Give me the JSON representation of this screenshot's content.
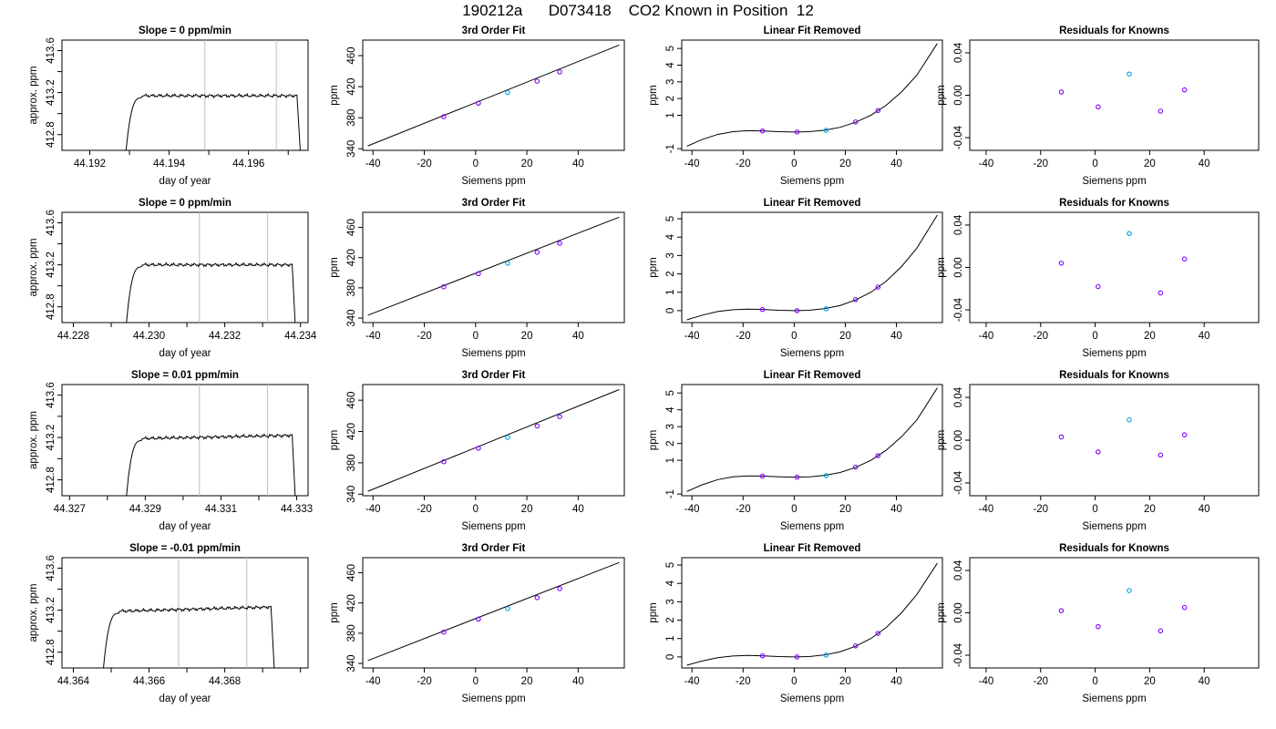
{
  "page": {
    "title": "190212a      D073418    CO2 Known in Position  12"
  },
  "colors": {
    "axis": "#000000",
    "curve": "#000000",
    "vline": "#bebebe",
    "points": [
      "#8000ff",
      "#8000ff",
      "#00a0e0",
      "#8000ff",
      "#8000ff"
    ],
    "point_centers": [
      "#0000ff",
      "#d4008a",
      "#ff4080",
      "#0000ff",
      "#0000ff"
    ]
  },
  "chart_data": [
    {
      "type": "line",
      "title": "Slope =  0  ppm/min",
      "xlabel": "day of year",
      "ylabel": "approx. ppm",
      "xlim": [
        44.1913,
        44.1975
      ],
      "ylim": [
        412.65,
        413.7
      ],
      "xticks": [
        44.192,
        44.193,
        44.194,
        44.195,
        44.196,
        44.197
      ],
      "xticklabels": [
        "44.192",
        "",
        "44.194",
        "",
        "44.196",
        ""
      ],
      "yticks": [
        412.8,
        413.0,
        413.2,
        413.4,
        413.6
      ],
      "yticklabels": [
        "412.8",
        "",
        "413.2",
        "",
        "413.6"
      ],
      "vlines": [
        44.1949,
        44.1967
      ],
      "trace": {
        "t_start": 44.19285,
        "t_rise": 44.1933,
        "t_end": 44.19722,
        "t_drop": 44.19735,
        "level": 413.17,
        "drift": 0.0
      }
    },
    {
      "type": "line",
      "title": "3rd Order Fit",
      "xlabel": "Siemens ppm",
      "ylabel": "ppm",
      "xlim": [
        -44,
        58
      ],
      "ylim": [
        338,
        480
      ],
      "xticks": [
        -40,
        -20,
        0,
        20,
        40
      ],
      "xticklabels": [
        "-40",
        "-20",
        "0",
        "20",
        "40"
      ],
      "yticks": [
        340,
        380,
        420,
        460
      ],
      "yticklabels": [
        "340",
        "380",
        "420",
        "460"
      ],
      "line": {
        "x": [
          -42,
          56
        ],
        "y": [
          343.7,
          473.6
        ]
      },
      "points": {
        "x": [
          -12.4,
          1.1,
          12.5,
          24.0,
          32.8
        ],
        "y": [
          381.4,
          398.7,
          412.5,
          427.1,
          439.0
        ]
      }
    },
    {
      "type": "line",
      "title": "Linear Fit Removed",
      "xlabel": "Siemens ppm",
      "ylabel": "ppm",
      "xlim": [
        -44,
        58
      ],
      "ylim": [
        -1.1,
        5.5
      ],
      "xticks": [
        -40,
        -20,
        0,
        20,
        40
      ],
      "xticklabels": [
        "-40",
        "-20",
        "0",
        "20",
        "40"
      ],
      "yticks": [
        -1,
        1,
        2,
        3,
        4,
        5
      ],
      "yticklabels": [
        "-1",
        "1",
        "2",
        "3",
        "4",
        "5"
      ],
      "curve": {
        "x": [
          -42,
          -36,
          -30,
          -24,
          -18,
          -12,
          -6,
          0,
          6,
          12,
          18,
          24,
          30,
          36,
          42,
          48,
          56
        ],
        "y": [
          -0.85,
          -0.45,
          -0.15,
          0.02,
          0.08,
          0.06,
          0.02,
          0.0,
          0.02,
          0.11,
          0.28,
          0.58,
          1.0,
          1.6,
          2.4,
          3.4,
          5.3
        ]
      },
      "points": {
        "x": [
          -12.4,
          1.1,
          12.5,
          24.0,
          32.8
        ],
        "y": [
          0.06,
          0.0,
          0.1,
          0.6,
          1.28
        ]
      }
    },
    {
      "type": "scatter",
      "title": "Residuals for Knowns",
      "xlabel": "Siemens ppm",
      "ylabel": "ppm",
      "xlim": [
        -46,
        60
      ],
      "ylim": [
        -0.052,
        0.052
      ],
      "xticks": [
        -40,
        -20,
        0,
        20,
        40
      ],
      "xticklabels": [
        "-40",
        "-20",
        "0",
        "20",
        "40"
      ],
      "yticks": [
        -0.04,
        0.0,
        0.04
      ],
      "yticklabels": [
        "-0.04",
        "0.00",
        "0.04"
      ],
      "points": {
        "x": [
          -12.4,
          1.1,
          12.5,
          24.0,
          32.8
        ],
        "y": [
          0.003,
          -0.011,
          0.02,
          -0.015,
          0.005
        ]
      }
    },
    {
      "type": "line",
      "title": "Slope =  0  ppm/min",
      "xlabel": "day of year",
      "ylabel": "approx. ppm",
      "xlim": [
        44.2277,
        44.2342
      ],
      "ylim": [
        412.65,
        413.7
      ],
      "xticks": [
        44.228,
        44.229,
        44.23,
        44.231,
        44.232,
        44.233,
        44.234
      ],
      "xticklabels": [
        "44.228",
        "",
        "44.230",
        "",
        "44.232",
        "",
        "44.234"
      ],
      "yticks": [
        412.8,
        413.0,
        413.2,
        413.4,
        413.6
      ],
      "yticklabels": [
        "412.8",
        "",
        "413.2",
        "",
        "413.6"
      ],
      "vlines": [
        44.23133,
        44.23313
      ],
      "trace": {
        "t_start": 44.22934,
        "t_rise": 44.2298,
        "t_end": 44.23378,
        "t_drop": 44.2339,
        "level": 413.2,
        "drift": 0.0
      }
    },
    {
      "type": "line",
      "title": "3rd Order Fit",
      "xlabel": "Siemens ppm",
      "ylabel": "ppm",
      "xlim": [
        -44,
        58
      ],
      "ylim": [
        334,
        480
      ],
      "xticks": [
        -40,
        -20,
        0,
        20,
        40
      ],
      "xticklabels": [
        "-40",
        "-20",
        "0",
        "20",
        "40"
      ],
      "yticks": [
        340,
        380,
        420,
        460
      ],
      "yticklabels": [
        "340",
        "380",
        "420",
        "460"
      ],
      "line": {
        "x": [
          -42,
          56
        ],
        "y": [
          343.7,
          473.6
        ]
      },
      "points": {
        "x": [
          -12.4,
          1.1,
          12.5,
          24.0,
          32.8
        ],
        "y": [
          381.4,
          398.7,
          412.5,
          427.1,
          439.0
        ]
      }
    },
    {
      "type": "line",
      "title": "Linear Fit Removed",
      "xlabel": "Siemens ppm",
      "ylabel": "ppm",
      "xlim": [
        -44,
        58
      ],
      "ylim": [
        -0.65,
        5.35
      ],
      "xticks": [
        -40,
        -20,
        0,
        20,
        40
      ],
      "xticklabels": [
        "-40",
        "-20",
        "0",
        "20",
        "40"
      ],
      "yticks": [
        0,
        1,
        2,
        3,
        4,
        5
      ],
      "yticklabels": [
        "0",
        "1",
        "2",
        "3",
        "4",
        "5"
      ],
      "curve": {
        "x": [
          -42,
          -36,
          -30,
          -24,
          -18,
          -12,
          -6,
          0,
          6,
          12,
          18,
          24,
          30,
          36,
          42,
          48,
          56
        ],
        "y": [
          -0.5,
          -0.25,
          -0.05,
          0.05,
          0.08,
          0.06,
          0.02,
          0.0,
          0.02,
          0.11,
          0.28,
          0.58,
          1.0,
          1.6,
          2.4,
          3.4,
          5.2
        ]
      },
      "points": {
        "x": [
          -12.4,
          1.1,
          12.5,
          24.0,
          32.8
        ],
        "y": [
          0.06,
          0.0,
          0.1,
          0.6,
          1.28
        ]
      }
    },
    {
      "type": "scatter",
      "title": "Residuals for Knowns",
      "xlabel": "Siemens ppm",
      "ylabel": "ppm",
      "xlim": [
        -46,
        60
      ],
      "ylim": [
        -0.052,
        0.052
      ],
      "xticks": [
        -40,
        -20,
        0,
        20,
        40
      ],
      "xticklabels": [
        "-40",
        "-20",
        "0",
        "20",
        "40"
      ],
      "yticks": [
        -0.04,
        0.0,
        0.04
      ],
      "yticklabels": [
        "-0.04",
        "0.00",
        "0.04"
      ],
      "points": {
        "x": [
          -12.4,
          1.1,
          12.5,
          24.0,
          32.8
        ],
        "y": [
          0.004,
          -0.018,
          0.032,
          -0.024,
          0.008
        ]
      }
    },
    {
      "type": "line",
      "title": "Slope =  0.01  ppm/min",
      "xlabel": "day of year",
      "ylabel": "approx. ppm",
      "xlim": [
        44.3268,
        44.3333
      ],
      "ylim": [
        412.65,
        413.7
      ],
      "xticks": [
        44.327,
        44.328,
        44.329,
        44.33,
        44.331,
        44.332,
        44.333
      ],
      "xticklabels": [
        "44.327",
        "",
        "44.329",
        "",
        "44.331",
        "",
        "44.333"
      ],
      "yticks": [
        412.8,
        413.0,
        413.2,
        413.4,
        413.6
      ],
      "yticklabels": [
        "412.8",
        "",
        "413.2",
        "",
        "413.6"
      ],
      "vlines": [
        44.33043,
        44.33223
      ],
      "trace": {
        "t_start": 44.32844,
        "t_rise": 44.3289,
        "t_end": 44.33288,
        "t_drop": 44.333,
        "level": 413.19,
        "drift": 0.03
      }
    },
    {
      "type": "line",
      "title": "3rd Order Fit",
      "xlabel": "Siemens ppm",
      "ylabel": "ppm",
      "xlim": [
        -44,
        58
      ],
      "ylim": [
        338,
        480
      ],
      "xticks": [
        -40,
        -20,
        0,
        20,
        40
      ],
      "xticklabels": [
        "-40",
        "-20",
        "0",
        "20",
        "40"
      ],
      "yticks": [
        340,
        380,
        420,
        460
      ],
      "yticklabels": [
        "340",
        "380",
        "420",
        "460"
      ],
      "line": {
        "x": [
          -42,
          56
        ],
        "y": [
          343.7,
          473.6
        ]
      },
      "points": {
        "x": [
          -12.4,
          1.1,
          12.5,
          24.0,
          32.8
        ],
        "y": [
          381.4,
          398.7,
          412.5,
          427.1,
          439.0
        ]
      }
    },
    {
      "type": "line",
      "title": "Linear Fit Removed",
      "xlabel": "Siemens ppm",
      "ylabel": "ppm",
      "xlim": [
        -44,
        58
      ],
      "ylim": [
        -1.1,
        5.5
      ],
      "xticks": [
        -40,
        -20,
        0,
        20,
        40
      ],
      "xticklabels": [
        "-40",
        "-20",
        "0",
        "20",
        "40"
      ],
      "yticks": [
        -1,
        1,
        2,
        3,
        4,
        5
      ],
      "yticklabels": [
        "-1",
        "1",
        "2",
        "3",
        "4",
        "5"
      ],
      "curve": {
        "x": [
          -42,
          -36,
          -30,
          -24,
          -18,
          -12,
          -6,
          0,
          6,
          12,
          18,
          24,
          30,
          36,
          42,
          48,
          56
        ],
        "y": [
          -0.85,
          -0.45,
          -0.15,
          0.02,
          0.08,
          0.06,
          0.02,
          0.0,
          0.02,
          0.11,
          0.28,
          0.58,
          1.0,
          1.6,
          2.4,
          3.4,
          5.3
        ]
      },
      "points": {
        "x": [
          -12.4,
          1.1,
          12.5,
          24.0,
          32.8
        ],
        "y": [
          0.06,
          0.0,
          0.1,
          0.6,
          1.28
        ]
      }
    },
    {
      "type": "scatter",
      "title": "Residuals for Knowns",
      "xlabel": "Siemens ppm",
      "ylabel": "ppm",
      "xlim": [
        -46,
        60
      ],
      "ylim": [
        -0.052,
        0.052
      ],
      "xticks": [
        -40,
        -20,
        0,
        20,
        40
      ],
      "xticklabels": [
        "-40",
        "-20",
        "0",
        "20",
        "40"
      ],
      "yticks": [
        -0.04,
        0.0,
        0.04
      ],
      "yticklabels": [
        "-0.04",
        "0.00",
        "0.04"
      ],
      "points": {
        "x": [
          -12.4,
          1.1,
          12.5,
          24.0,
          32.8
        ],
        "y": [
          0.003,
          -0.011,
          0.019,
          -0.014,
          0.005
        ]
      }
    },
    {
      "type": "line",
      "title": "Slope =  -0.01  ppm/min",
      "xlabel": "day of year",
      "ylabel": "approx. ppm",
      "xlim": [
        44.3637,
        44.3702
      ],
      "ylim": [
        412.65,
        413.7
      ],
      "xticks": [
        44.364,
        44.365,
        44.366,
        44.367,
        44.368,
        44.369,
        44.37
      ],
      "xticklabels": [
        "44.364",
        "",
        "44.366",
        "",
        "44.368",
        "",
        ""
      ],
      "yticks": [
        412.8,
        413.0,
        413.2,
        413.4,
        413.6
      ],
      "yticklabels": [
        "412.8",
        "",
        "413.2",
        "",
        "413.6"
      ],
      "vlines": [
        44.36678,
        44.36858
      ],
      "trace": {
        "t_start": 44.36473,
        "t_rise": 44.3652,
        "t_end": 44.36922,
        "t_drop": 44.36935,
        "level": 413.19,
        "drift": 0.04
      }
    },
    {
      "type": "line",
      "title": "3rd Order Fit",
      "xlabel": "Siemens ppm",
      "ylabel": "ppm",
      "xlim": [
        -44,
        58
      ],
      "ylim": [
        334,
        480
      ],
      "xticks": [
        -40,
        -20,
        0,
        20,
        40
      ],
      "xticklabels": [
        "-40",
        "-20",
        "0",
        "20",
        "40"
      ],
      "yticks": [
        340,
        380,
        420,
        460
      ],
      "yticklabels": [
        "340",
        "380",
        "420",
        "460"
      ],
      "line": {
        "x": [
          -42,
          56
        ],
        "y": [
          343.7,
          473.6
        ]
      },
      "points": {
        "x": [
          -12.4,
          1.1,
          12.5,
          24.0,
          32.8
        ],
        "y": [
          381.4,
          398.7,
          412.5,
          427.1,
          439.0
        ]
      }
    },
    {
      "type": "line",
      "title": "Linear Fit Removed",
      "xlabel": "Siemens ppm",
      "ylabel": "ppm",
      "xlim": [
        -44,
        58
      ],
      "ylim": [
        -0.6,
        5.4
      ],
      "xticks": [
        -40,
        -20,
        0,
        20,
        40
      ],
      "xticklabels": [
        "-40",
        "-20",
        "0",
        "20",
        "40"
      ],
      "yticks": [
        0,
        1,
        2,
        3,
        4,
        5
      ],
      "yticklabels": [
        "0",
        "1",
        "2",
        "3",
        "4",
        "5"
      ],
      "curve": {
        "x": [
          -42,
          -36,
          -30,
          -24,
          -18,
          -12,
          -6,
          0,
          6,
          12,
          18,
          24,
          30,
          36,
          42,
          48,
          56
        ],
        "y": [
          -0.45,
          -0.22,
          -0.04,
          0.05,
          0.08,
          0.06,
          0.02,
          0.0,
          0.02,
          0.11,
          0.28,
          0.58,
          1.0,
          1.6,
          2.4,
          3.4,
          5.1
        ]
      },
      "points": {
        "x": [
          -12.4,
          1.1,
          12.5,
          24.0,
          32.8
        ],
        "y": [
          0.06,
          0.0,
          0.1,
          0.6,
          1.28
        ]
      }
    },
    {
      "type": "scatter",
      "title": "Residuals for Knowns",
      "xlabel": "Siemens ppm",
      "ylabel": "ppm",
      "xlim": [
        -46,
        60
      ],
      "ylim": [
        -0.052,
        0.052
      ],
      "xticks": [
        -40,
        -20,
        0,
        20,
        40
      ],
      "xticklabels": [
        "-40",
        "-20",
        "0",
        "20",
        "40"
      ],
      "yticks": [
        -0.04,
        0.0,
        0.04
      ],
      "yticklabels": [
        "-0.04",
        "0.00",
        "0.04"
      ],
      "points": {
        "x": [
          -12.4,
          1.1,
          12.5,
          24.0,
          32.8
        ],
        "y": [
          0.002,
          -0.013,
          0.021,
          -0.017,
          0.005
        ]
      }
    }
  ]
}
